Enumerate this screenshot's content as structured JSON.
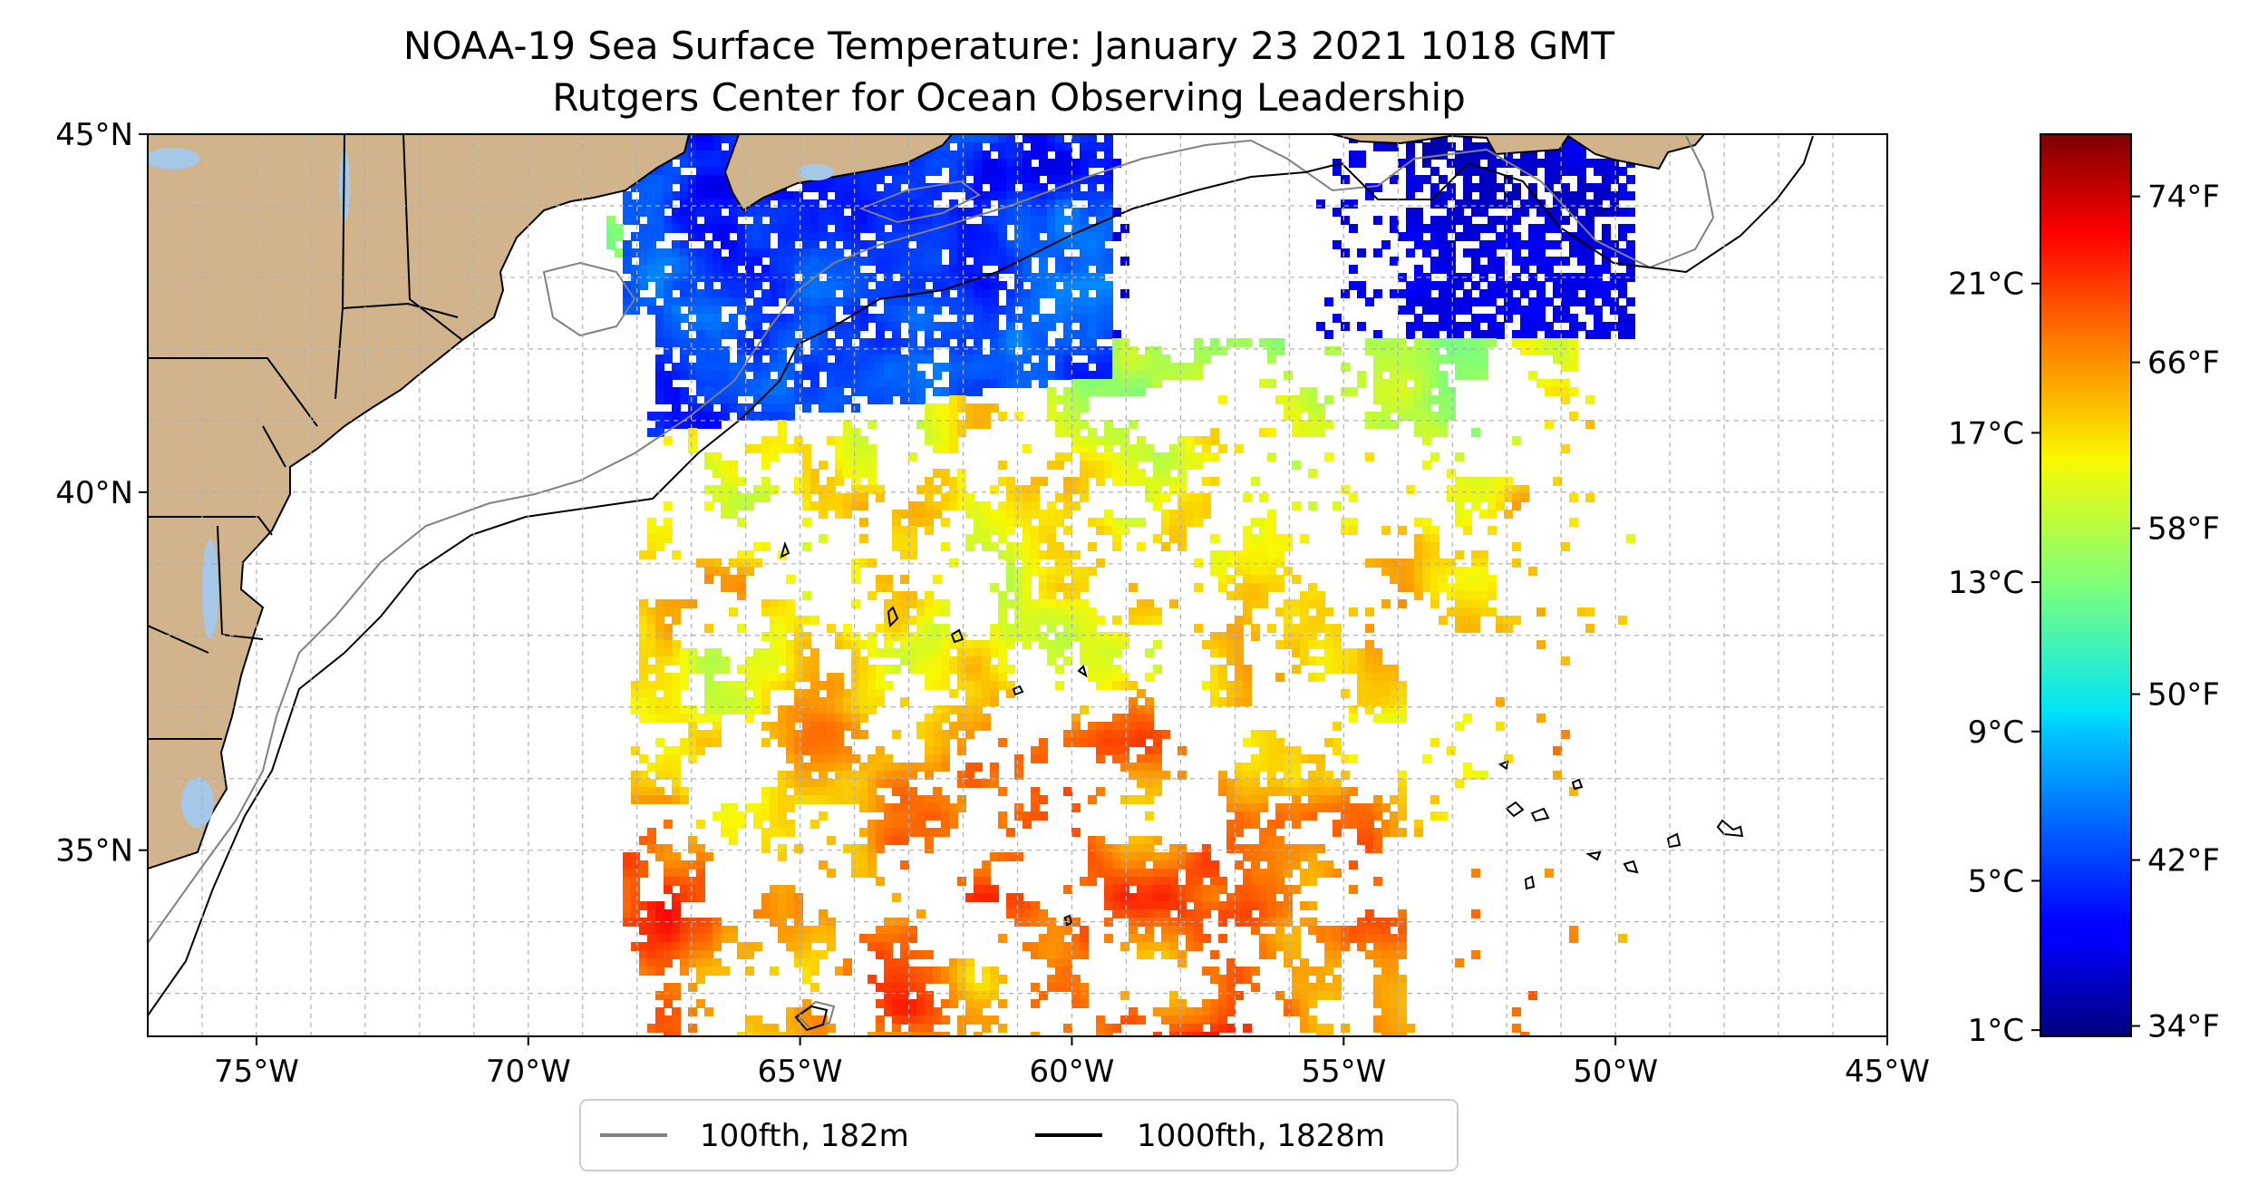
{
  "title": {
    "line1": "NOAA-19 Sea Surface Temperature: January 23 2021 1018 GMT",
    "line2": "Rutgers Center for Ocean Observing Leadership"
  },
  "map": {
    "lon_range": [
      -77,
      -45
    ],
    "lat_range": [
      32.4,
      45
    ],
    "x_ticks": [
      {
        "lon": -75,
        "label": "75°W"
      },
      {
        "lon": -70,
        "label": "70°W"
      },
      {
        "lon": -65,
        "label": "65°W"
      },
      {
        "lon": -60,
        "label": "60°W"
      },
      {
        "lon": -55,
        "label": "55°W"
      },
      {
        "lon": -50,
        "label": "50°W"
      },
      {
        "lon": -45,
        "label": "45°W"
      }
    ],
    "y_ticks": [
      {
        "lat": 45,
        "label": "45°N"
      },
      {
        "lat": 40,
        "label": "40°N"
      },
      {
        "lat": 35,
        "label": "35°N"
      }
    ],
    "gridlines": true,
    "land_color": "#d2b48c",
    "water_color": "#a6c8e8",
    "no_data_color": "#ffffff"
  },
  "colorbar": {
    "colormap": "jet",
    "range_f": [
      33.5,
      77
    ],
    "celsius_ticks": [
      {
        "c": 1,
        "label": "1°C"
      },
      {
        "c": 5,
        "label": "5°C"
      },
      {
        "c": 9,
        "label": "9°C"
      },
      {
        "c": 13,
        "label": "13°C"
      },
      {
        "c": 17,
        "label": "17°C"
      },
      {
        "c": 21,
        "label": "21°C"
      }
    ],
    "fahrenheit_ticks": [
      {
        "f": 34,
        "label": "34°F"
      },
      {
        "f": 42,
        "label": "42°F"
      },
      {
        "f": 50,
        "label": "50°F"
      },
      {
        "f": 58,
        "label": "58°F"
      },
      {
        "f": 66,
        "label": "66°F"
      },
      {
        "f": 74,
        "label": "74°F"
      }
    ]
  },
  "legend": {
    "position": "bottom-center",
    "items": [
      {
        "label": "100fth, 182m",
        "color": "#808080"
      },
      {
        "label": "1000fth, 1828m",
        "color": "#000000"
      }
    ]
  }
}
